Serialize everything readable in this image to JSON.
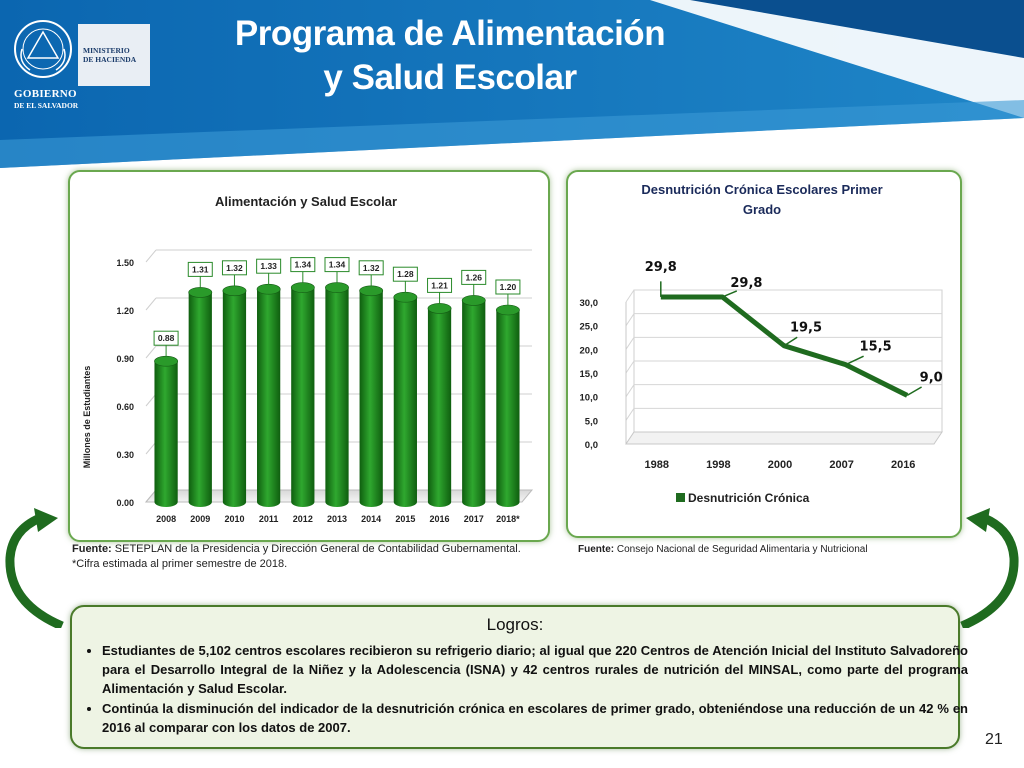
{
  "header": {
    "title_line1": "Programa de Alimentación",
    "title_line2": "y Salud Escolar",
    "logo": {
      "ministry_line1": "MINISTERIO",
      "ministry_line2": "DE HACIENDA",
      "gov_line1": "GOBIERNO",
      "gov_line2": "DE EL SALVADOR"
    }
  },
  "colors": {
    "header_blue": "#0a5fa8",
    "header_light": "#2c8fd0",
    "bar_green": "#1f8a1f",
    "line_green": "#1f6b1f"
  },
  "chart_left": {
    "chart_data": {
      "type": "bar",
      "title": "Alimentación y Salud Escolar",
      "ylabel": "Millones de Estudiantes",
      "categories": [
        "2008",
        "2009",
        "2010",
        "2011",
        "2012",
        "2013",
        "2014",
        "2015",
        "2016",
        "2017",
        "2018*"
      ],
      "values": [
        0.88,
        1.31,
        1.32,
        1.33,
        1.34,
        1.34,
        1.32,
        1.28,
        1.21,
        1.26,
        1.2
      ],
      "value_labels": [
        "0.88",
        "1.31",
        "1.32",
        "1.33",
        "1.34",
        "1.34",
        "1.32",
        "1.28",
        "1.21",
        "1.26",
        "1.20"
      ],
      "yticks": [
        "0.00",
        "0.30",
        "0.60",
        "0.90",
        "1.20",
        "1.50"
      ],
      "ylim": [
        0,
        1.5
      ],
      "grid": true
    }
  },
  "chart_right": {
    "chart_data": {
      "type": "line",
      "title_line1": "Desnutrición  Crónica Escolares Primer",
      "title_line2": "Grado",
      "categories": [
        "1988",
        "1998",
        "2000",
        "2007",
        "2016"
      ],
      "values": [
        29.8,
        29.8,
        19.5,
        15.5,
        9.0
      ],
      "value_labels": [
        "29,8",
        "29,8",
        "19,5",
        "15,5",
        "9,0"
      ],
      "yticks": [
        "0,0",
        "5,0",
        "10,0",
        "15,0",
        "20,0",
        "25,0",
        "30,0"
      ],
      "ylim": [
        0,
        30
      ],
      "legend": "Desnutrición  Crónica",
      "legend_position": "bottom",
      "grid": true
    }
  },
  "sources": {
    "left_label": "Fuente:",
    "left_text": " SETEPLAN de la Presidencia y Dirección General de Contabilidad Gubernamental.",
    "left_note": "*Cifra estimada al primer semestre de 2018.",
    "right_label": "Fuente:",
    "right_text": " Consejo Nacional de Seguridad Alimentaria y Nutricional"
  },
  "logros": {
    "title": "Logros:",
    "items": [
      "Estudiantes de 5,102 centros escolares recibieron su refrigerio diario; al igual que 220 Centros de Atención Inicial del Instituto Salvadoreño para el Desarrollo Integral de la Niñez y la Adolescencia (ISNA) y 42 centros rurales de nutrición del MINSAL, como parte del programa Alimentación y Salud Escolar.",
      "Continúa la disminución del indicador de la desnutrición crónica en escolares de primer grado, obteniéndose una reducción de un 42 % en 2016 al comparar con los datos de 2007."
    ]
  },
  "page_number": "21"
}
